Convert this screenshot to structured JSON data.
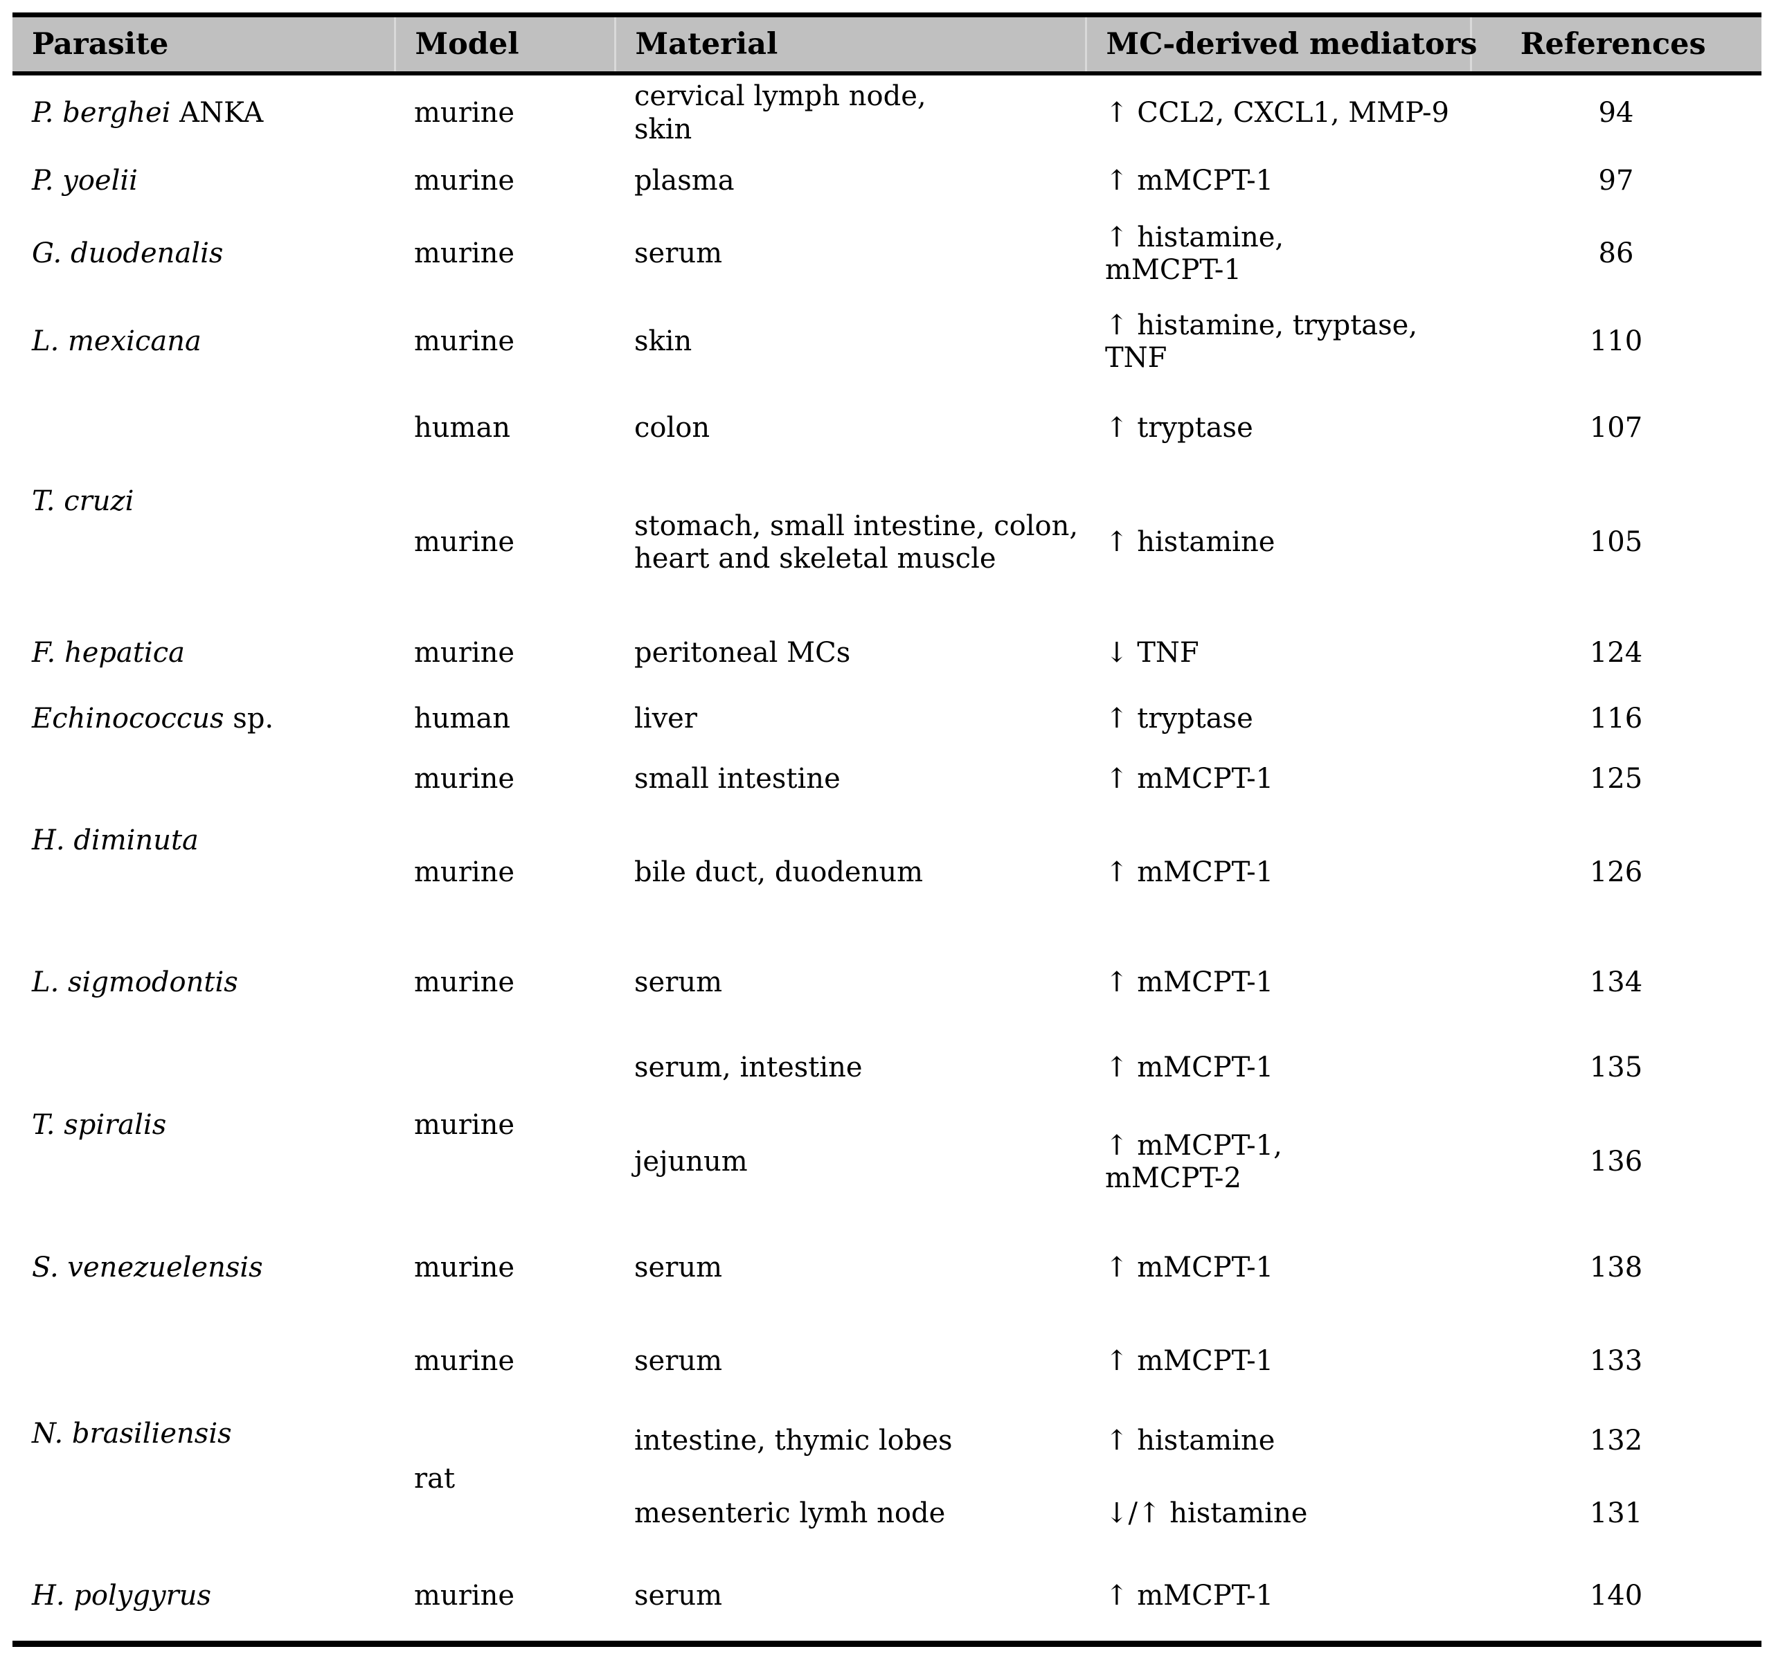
{
  "table": {
    "columns": [
      "Parasite",
      "Model",
      "Material",
      "MC-derived mediators",
      "References"
    ],
    "colors": {
      "header_bg": "#c0c0c0",
      "rule": "#000000",
      "text": "#000000"
    },
    "rows": [
      {
        "parasite_italic": "P. berghei",
        "parasite_rest": " ANKA",
        "model": "murine",
        "material": "cervical lymph node,\nskin",
        "mediators": "↑ CCL2, CXCL1, MMP-9",
        "reference": "94"
      },
      {
        "parasite_italic": "P. yoelii",
        "model": "murine",
        "material": "plasma",
        "mediators": "↑ mMCPT-1",
        "reference": "97"
      },
      {
        "parasite_italic": "G. duodenalis",
        "model": "murine",
        "material": "serum",
        "mediators": "↑ histamine,\nmMCPT-1",
        "reference": "86"
      },
      {
        "parasite_italic": "L. mexicana",
        "model": "murine",
        "material": "skin",
        "mediators": "↑ histamine, tryptase,\nTNF",
        "reference": "110"
      },
      {
        "parasite_italic": "T. cruzi",
        "model": "human",
        "material": "colon",
        "mediators": "↑ tryptase",
        "reference": "107"
      },
      {
        "model": "murine",
        "material": "stomach, small intestine, colon,\nheart and skeletal muscle",
        "mediators": "↑ histamine",
        "reference": "105"
      },
      {
        "parasite_italic": "F. hepatica",
        "model": "murine",
        "material": "peritoneal MCs",
        "mediators": "↓ TNF",
        "reference": "124"
      },
      {
        "parasite_italic": "Echinococcus",
        "parasite_rest": " sp.",
        "model": "human",
        "material": "liver",
        "mediators": "↑ tryptase",
        "reference": "116"
      },
      {
        "parasite_italic": "H. diminuta",
        "model": "murine",
        "material": "small intestine",
        "mediators": "↑ mMCPT-1",
        "reference": "125"
      },
      {
        "model": "murine",
        "material": "bile duct, duodenum",
        "mediators": "↑ mMCPT-1",
        "reference": "126"
      },
      {
        "parasite_italic": "L. sigmodontis",
        "model": "murine",
        "material": "serum",
        "mediators": "↑ mMCPT-1",
        "reference": "134"
      },
      {
        "parasite_italic": "T. spiralis",
        "model": "murine",
        "material": "serum, intestine",
        "mediators": "↑ mMCPT-1",
        "reference": "135"
      },
      {
        "material": "jejunum",
        "mediators": "↑ mMCPT-1,\nmMCPT-2",
        "reference": "136"
      },
      {
        "parasite_italic": "S. venezuelensis",
        "model": "murine",
        "material": "serum",
        "mediators": "↑ mMCPT-1",
        "reference": "138"
      },
      {
        "parasite_italic": "N. brasiliensis",
        "model": "murine",
        "material": "serum",
        "mediators": "↑ mMCPT-1",
        "reference": "133"
      },
      {
        "model": "rat",
        "material": "intestine, thymic lobes",
        "mediators": "↑ histamine",
        "reference": "132"
      },
      {
        "material": "mesenteric lymh node",
        "mediators": "↓/↑ histamine",
        "reference": "131"
      },
      {
        "parasite_italic": "H. polygyrus",
        "model": "murine",
        "material": "serum",
        "mediators": "↑ mMCPT-1",
        "reference": "140"
      }
    ]
  }
}
